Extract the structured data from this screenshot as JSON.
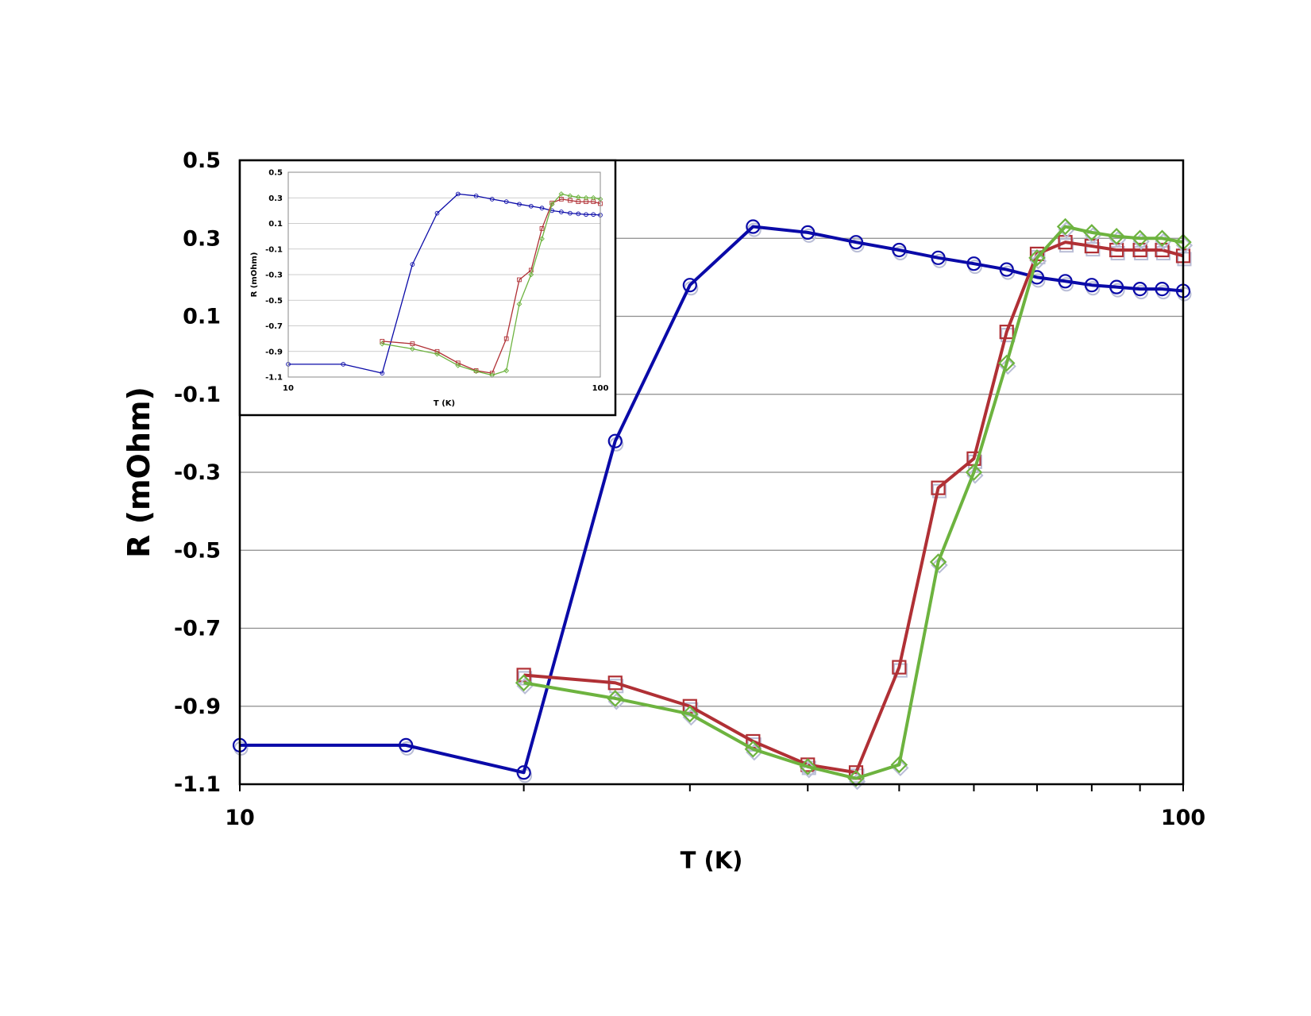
{
  "chart_data": {
    "type": "line",
    "title": "",
    "xlabel": "T (K)",
    "ylabel": "R (mOhm)",
    "xscale": "log",
    "xlim": [
      10,
      100
    ],
    "ylim": [
      -1.1,
      0.5
    ],
    "xticks": [
      "10",
      "100"
    ],
    "yticks": [
      "0.5",
      "0.3",
      "0.1",
      "-0.1",
      "-0.3",
      "-0.5",
      "-0.7",
      "-0.9",
      "-1.1"
    ],
    "grid": "horizontal",
    "legend": "none",
    "series": [
      {
        "color": "#0a0aa8",
        "marker": "circle",
        "x": [
          10,
          15,
          20,
          25,
          30,
          35,
          40,
          45,
          50,
          55,
          60,
          65,
          70,
          75,
          80,
          85,
          90,
          95,
          100
        ],
        "y": [
          -1.0,
          -1.0,
          -1.07,
          -0.22,
          0.18,
          0.33,
          0.315,
          0.29,
          0.27,
          0.25,
          0.235,
          0.22,
          0.2,
          0.19,
          0.18,
          0.175,
          0.17,
          0.17,
          0.165
        ]
      },
      {
        "color": "#b03035",
        "marker": "square",
        "x": [
          20,
          25,
          30,
          35,
          40,
          45,
          50,
          55,
          60,
          65,
          70,
          75,
          80,
          85,
          90,
          95,
          100
        ],
        "y": [
          -0.82,
          -0.84,
          -0.9,
          -0.99,
          -1.05,
          -1.07,
          -0.8,
          -0.34,
          -0.265,
          0.06,
          0.26,
          0.29,
          0.28,
          0.27,
          0.27,
          0.27,
          0.255
        ]
      },
      {
        "color": "#6db33f",
        "marker": "diamond",
        "x": [
          20,
          25,
          30,
          35,
          40,
          45,
          50,
          55,
          60,
          65,
          70,
          75,
          80,
          85,
          90,
          95,
          100
        ],
        "y": [
          -0.84,
          -0.88,
          -0.92,
          -1.01,
          -1.055,
          -1.085,
          -1.05,
          -0.53,
          -0.3,
          -0.02,
          0.25,
          0.33,
          0.315,
          0.305,
          0.3,
          0.3,
          0.29
        ]
      }
    ],
    "inset": {
      "xlabel": "T (K)",
      "ylabel": "R (mOhm)",
      "xticks": [
        "10",
        "100"
      ],
      "yticks": [
        "0.5",
        "0.3",
        "0.1",
        "-0.1",
        "-0.3",
        "-0.5",
        "-0.7",
        "-0.9",
        "-1.1"
      ],
      "legend_position": "top-left"
    }
  }
}
